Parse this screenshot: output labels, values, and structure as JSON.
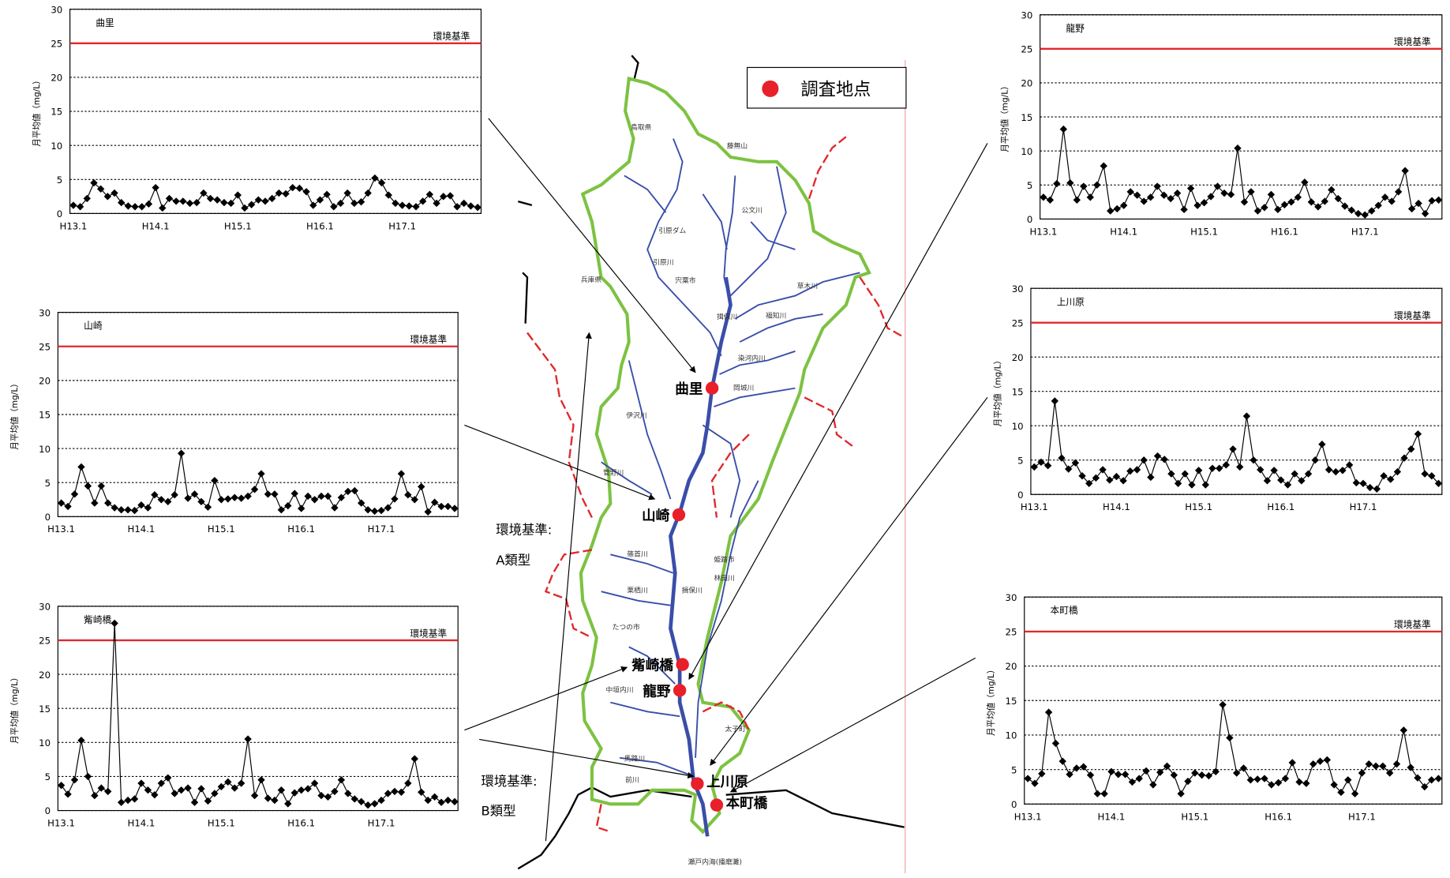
{
  "chart_data": [
    {
      "type": "line",
      "title": "曲里",
      "ylabel": "月平均値（mg/L）",
      "categories": [
        "H13.1",
        null,
        null,
        null,
        null,
        null,
        null,
        null,
        null,
        null,
        null,
        null,
        "H14.1",
        null,
        null,
        null,
        null,
        null,
        null,
        null,
        null,
        null,
        null,
        null,
        "H15.1",
        null,
        null,
        null,
        null,
        null,
        null,
        null,
        null,
        null,
        null,
        null,
        "H16.1",
        null,
        null,
        null,
        null,
        null,
        null,
        null,
        null,
        null,
        null,
        null,
        "H17.1",
        null,
        null,
        null,
        null,
        null,
        null,
        null,
        null,
        null,
        null,
        null
      ],
      "values": [
        1.2,
        1.0,
        2.2,
        4.5,
        3.6,
        2.5,
        3.0,
        1.6,
        1.1,
        1.0,
        1.0,
        1.4,
        3.8,
        0.8,
        2.2,
        1.8,
        1.8,
        1.5,
        1.6,
        3.0,
        2.2,
        2.0,
        1.6,
        1.5,
        2.7,
        0.8,
        1.3,
        2.0,
        1.8,
        2.2,
        3.0,
        2.9,
        3.8,
        3.7,
        3.2,
        1.2,
        2.0,
        2.8,
        1.0,
        1.5,
        3.0,
        1.5,
        1.7,
        3.0,
        5.2,
        4.5,
        2.7,
        1.5,
        1.2,
        1.1,
        1.0,
        1.8,
        2.8,
        1.5,
        2.5,
        2.6,
        1.0,
        1.5,
        1.1,
        0.9
      ],
      "color": "#000000",
      "ylim": [
        0,
        30
      ],
      "yticks": [
        0,
        5,
        10,
        15,
        20,
        25,
        30
      ],
      "grid": true,
      "reference_line": {
        "value": 25,
        "label": "環境基準",
        "color": "#e0282b"
      }
    },
    {
      "type": "line",
      "title": "山崎",
      "ylabel": "月平均値（mg/L）",
      "categories": [
        "H13.1",
        null,
        null,
        null,
        null,
        null,
        null,
        null,
        null,
        null,
        null,
        null,
        "H14.1",
        null,
        null,
        null,
        null,
        null,
        null,
        null,
        null,
        null,
        null,
        null,
        "H15.1",
        null,
        null,
        null,
        null,
        null,
        null,
        null,
        null,
        null,
        null,
        null,
        "H16.1",
        null,
        null,
        null,
        null,
        null,
        null,
        null,
        null,
        null,
        null,
        null,
        "H17.1",
        null,
        null,
        null,
        null,
        null,
        null,
        null,
        null,
        null,
        null,
        null
      ],
      "values": [
        2.0,
        1.5,
        3.3,
        7.3,
        4.5,
        2.0,
        4.5,
        2.0,
        1.3,
        1.0,
        1.0,
        0.9,
        1.7,
        1.3,
        3.2,
        2.5,
        2.2,
        3.2,
        9.3,
        2.7,
        3.3,
        2.2,
        1.4,
        5.3,
        2.5,
        2.6,
        2.8,
        2.7,
        3.0,
        4.0,
        6.3,
        3.3,
        3.3,
        1.0,
        1.6,
        3.4,
        1.2,
        3.0,
        2.5,
        3.0,
        3.0,
        1.3,
        2.8,
        3.7,
        3.8,
        2.0,
        1.0,
        0.8,
        0.9,
        1.3,
        2.6,
        6.3,
        3.2,
        2.5,
        4.4,
        0.7,
        2.1,
        1.5,
        1.5,
        1.2
      ],
      "color": "#000000",
      "ylim": [
        0,
        30
      ],
      "yticks": [
        0,
        5,
        10,
        15,
        20,
        25,
        30
      ],
      "grid": true,
      "reference_line": {
        "value": 25,
        "label": "環境基準",
        "color": "#e0282b"
      }
    },
    {
      "type": "line",
      "title": "觜崎橋",
      "ylabel": "月平均値（mg/L）",
      "categories": [
        "H13.1",
        null,
        null,
        null,
        null,
        null,
        null,
        null,
        null,
        null,
        null,
        null,
        "H14.1",
        null,
        null,
        null,
        null,
        null,
        null,
        null,
        null,
        null,
        null,
        null,
        "H15.1",
        null,
        null,
        null,
        null,
        null,
        null,
        null,
        null,
        null,
        null,
        null,
        "H16.1",
        null,
        null,
        null,
        null,
        null,
        null,
        null,
        null,
        null,
        null,
        null,
        "H17.1",
        null,
        null,
        null,
        null,
        null,
        null,
        null,
        null,
        null,
        null,
        null
      ],
      "values": [
        3.7,
        2.4,
        4.5,
        10.3,
        5.0,
        2.2,
        3.3,
        2.8,
        27.5,
        1.2,
        1.5,
        1.7,
        4.0,
        3.0,
        2.3,
        4.0,
        4.8,
        2.5,
        3.0,
        3.3,
        1.2,
        3.2,
        1.4,
        2.5,
        3.5,
        4.2,
        3.3,
        4.0,
        10.5,
        2.2,
        4.5,
        1.8,
        1.5,
        3.0,
        1.0,
        2.6,
        3.0,
        3.2,
        4.0,
        2.2,
        2.0,
        2.8,
        4.5,
        2.5,
        1.7,
        1.3,
        0.8,
        1.0,
        1.5,
        2.5,
        2.8,
        2.7,
        4.0,
        7.6,
        2.7,
        1.5,
        2.0,
        1.2,
        1.5,
        1.3
      ],
      "color": "#000000",
      "ylim": [
        0,
        30
      ],
      "yticks": [
        0,
        5,
        10,
        15,
        20,
        25,
        30
      ],
      "grid": true,
      "reference_line": {
        "value": 25,
        "label": "環境基準",
        "color": "#e0282b"
      }
    },
    {
      "type": "line",
      "title": "龍野",
      "ylabel": "月平均値（mg/L）",
      "categories": [
        "H13.1",
        null,
        null,
        null,
        null,
        null,
        null,
        null,
        null,
        null,
        null,
        null,
        "H14.1",
        null,
        null,
        null,
        null,
        null,
        null,
        null,
        null,
        null,
        null,
        null,
        "H15.1",
        null,
        null,
        null,
        null,
        null,
        null,
        null,
        null,
        null,
        null,
        null,
        "H16.1",
        null,
        null,
        null,
        null,
        null,
        null,
        null,
        null,
        null,
        null,
        null,
        "H17.1",
        null,
        null,
        null,
        null,
        null,
        null,
        null,
        null,
        null,
        null,
        null
      ],
      "values": [
        3.2,
        2.8,
        5.2,
        13.2,
        5.3,
        2.8,
        4.8,
        3.2,
        5.0,
        7.8,
        1.2,
        1.5,
        2.0,
        4.0,
        3.5,
        2.6,
        3.2,
        4.8,
        3.5,
        3.0,
        3.8,
        1.4,
        4.5,
        2.0,
        2.4,
        3.3,
        4.8,
        3.8,
        3.6,
        10.4,
        2.5,
        4.0,
        1.2,
        1.7,
        3.6,
        1.4,
        2.1,
        2.5,
        3.2,
        5.4,
        2.5,
        1.8,
        2.6,
        4.3,
        3.0,
        1.9,
        1.3,
        0.8,
        0.6,
        1.2,
        2.0,
        3.2,
        2.6,
        4.0,
        7.1,
        1.5,
        2.3,
        0.8,
        2.7,
        2.8
      ],
      "color": "#000000",
      "ylim": [
        0,
        30
      ],
      "yticks": [
        0,
        5,
        10,
        15,
        20,
        25,
        30
      ],
      "grid": true,
      "reference_line": {
        "value": 25,
        "label": "環境基準",
        "color": "#e0282b"
      }
    },
    {
      "type": "line",
      "title": "上川原",
      "ylabel": "月平均値（mg/L）",
      "categories": [
        "H13.1",
        null,
        null,
        null,
        null,
        null,
        null,
        null,
        null,
        null,
        null,
        null,
        "H14.1",
        null,
        null,
        null,
        null,
        null,
        null,
        null,
        null,
        null,
        null,
        null,
        "H15.1",
        null,
        null,
        null,
        null,
        null,
        null,
        null,
        null,
        null,
        null,
        null,
        "H16.1",
        null,
        null,
        null,
        null,
        null,
        null,
        null,
        null,
        null,
        null,
        null,
        "H17.1",
        null,
        null,
        null,
        null,
        null,
        null,
        null,
        null,
        null,
        null,
        null
      ],
      "values": [
        4.0,
        4.7,
        4.2,
        13.6,
        5.3,
        3.7,
        4.6,
        2.7,
        1.6,
        2.4,
        3.6,
        2.1,
        2.6,
        2.0,
        3.4,
        3.6,
        5.0,
        2.5,
        5.6,
        5.1,
        3.0,
        1.6,
        3.0,
        1.4,
        3.5,
        1.4,
        3.8,
        3.8,
        4.3,
        6.6,
        4.0,
        11.4,
        5.0,
        3.6,
        2.0,
        3.5,
        2.1,
        1.4,
        3.0,
        2.0,
        3.0,
        5.0,
        7.3,
        3.6,
        3.3,
        3.5,
        4.3,
        1.7,
        1.6,
        1.0,
        0.8,
        2.7,
        2.2,
        3.3,
        5.3,
        6.6,
        8.8,
        3.0,
        2.7,
        1.6
      ],
      "color": "#000000",
      "ylim": [
        0,
        30
      ],
      "yticks": [
        0,
        5,
        10,
        15,
        20,
        25,
        30
      ],
      "grid": true,
      "reference_line": {
        "value": 25,
        "label": "環境基準",
        "color": "#e0282b"
      }
    },
    {
      "type": "line",
      "title": "本町橋",
      "ylabel": "月平均値（mg/L）",
      "categories": [
        "H13.1",
        null,
        null,
        null,
        null,
        null,
        null,
        null,
        null,
        null,
        null,
        null,
        "H14.1",
        null,
        null,
        null,
        null,
        null,
        null,
        null,
        null,
        null,
        null,
        null,
        "H15.1",
        null,
        null,
        null,
        null,
        null,
        null,
        null,
        null,
        null,
        null,
        null,
        "H16.1",
        null,
        null,
        null,
        null,
        null,
        null,
        null,
        null,
        null,
        null,
        null,
        "H17.1",
        null,
        null,
        null,
        null,
        null,
        null,
        null,
        null,
        null,
        null,
        null
      ],
      "values": [
        3.7,
        3.0,
        4.4,
        13.3,
        8.8,
        6.2,
        4.3,
        5.2,
        5.4,
        4.2,
        1.5,
        1.5,
        4.7,
        4.3,
        4.3,
        3.2,
        3.7,
        4.8,
        2.8,
        4.6,
        5.5,
        4.2,
        1.5,
        3.3,
        4.5,
        4.2,
        4.1,
        4.7,
        14.4,
        9.6,
        4.5,
        5.2,
        3.5,
        3.6,
        3.7,
        2.8,
        3.1,
        3.7,
        6.0,
        3.2,
        3.0,
        5.8,
        6.2,
        6.4,
        2.8,
        1.7,
        3.5,
        1.5,
        4.5,
        5.8,
        5.5,
        5.5,
        4.5,
        5.8,
        10.7,
        5.3,
        3.8,
        2.5,
        3.5,
        3.7
      ],
      "color": "#000000",
      "ylim": [
        0,
        30
      ],
      "yticks": [
        0,
        5,
        10,
        15,
        20,
        25,
        30
      ],
      "grid": true,
      "reference_line": {
        "value": 25,
        "label": "環境基準",
        "color": "#e0282b"
      }
    }
  ],
  "map": {
    "legend": "調査地点",
    "stations": [
      "曲里",
      "山崎",
      "觜崎橋",
      "龍野",
      "上川原",
      "本町橋"
    ],
    "standard_a": [
      "環境基準:",
      "A類型"
    ],
    "standard_b": [
      "環境基準:",
      "B類型"
    ],
    "labels": [
      "鳥取県",
      "兵庫県",
      "藤無山",
      "引原ダム",
      "公文川",
      "引原川",
      "宍粟市",
      "揖保川",
      "草木川",
      "福知川",
      "染河内川",
      "岡城川",
      "伊沢川",
      "菅野川",
      "篠首川",
      "栗栖川",
      "揖保川",
      "姫路市",
      "林田川",
      "たつの市",
      "中垣内川",
      "太子町",
      "馬路川",
      "前川",
      "瀬戸内海(播磨灘)"
    ]
  }
}
